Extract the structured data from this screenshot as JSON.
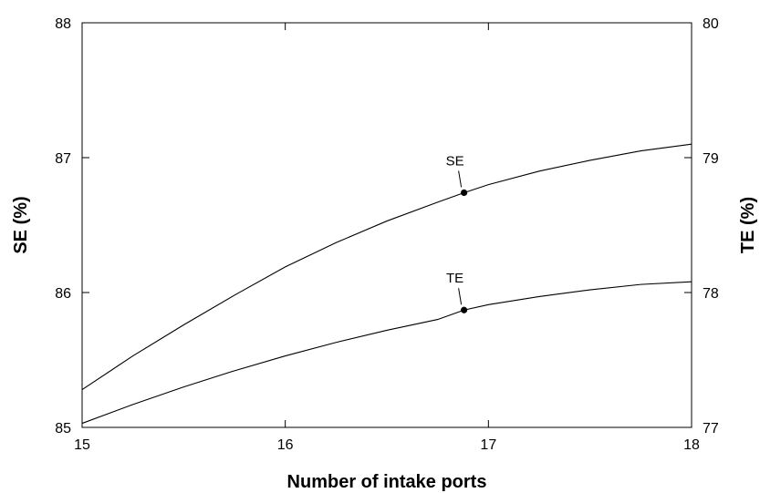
{
  "chart_data": {
    "type": "line",
    "title": "",
    "xlabel": "Number of intake ports",
    "ylabel_left": "SE (%)",
    "ylabel_right": "TE (%)",
    "xlim": [
      15,
      18
    ],
    "ylim_left": [
      85,
      88
    ],
    "ylim_right": [
      77,
      80
    ],
    "x_ticks": [
      "15",
      "16",
      "17",
      "18"
    ],
    "y_ticks_left": [
      "85",
      "86",
      "87",
      "88"
    ],
    "y_ticks_right": [
      "77",
      "78",
      "79",
      "80"
    ],
    "grid": false,
    "legend": "none",
    "series": [
      {
        "name": "SE",
        "axis": "left",
        "x": [
          15,
          15.25,
          15.5,
          15.75,
          16,
          16.25,
          16.5,
          16.75,
          16.88,
          17,
          17.25,
          17.5,
          17.75,
          18
        ],
        "y": [
          85.28,
          85.53,
          85.76,
          85.98,
          86.19,
          86.37,
          86.53,
          86.67,
          86.74,
          86.8,
          86.9,
          86.98,
          87.05,
          87.1
        ],
        "marker": {
          "x": 16.88,
          "y": 86.74
        }
      },
      {
        "name": "TE",
        "axis": "right",
        "x": [
          15,
          15.25,
          15.5,
          15.75,
          16,
          16.25,
          16.5,
          16.75,
          16.88,
          17,
          17.25,
          17.5,
          17.75,
          18
        ],
        "y": [
          77.03,
          77.17,
          77.3,
          77.42,
          77.53,
          77.63,
          77.72,
          77.8,
          77.87,
          77.91,
          77.97,
          78.02,
          78.06,
          78.08
        ],
        "marker": {
          "x": 16.88,
          "y": 77.87
        }
      }
    ]
  }
}
